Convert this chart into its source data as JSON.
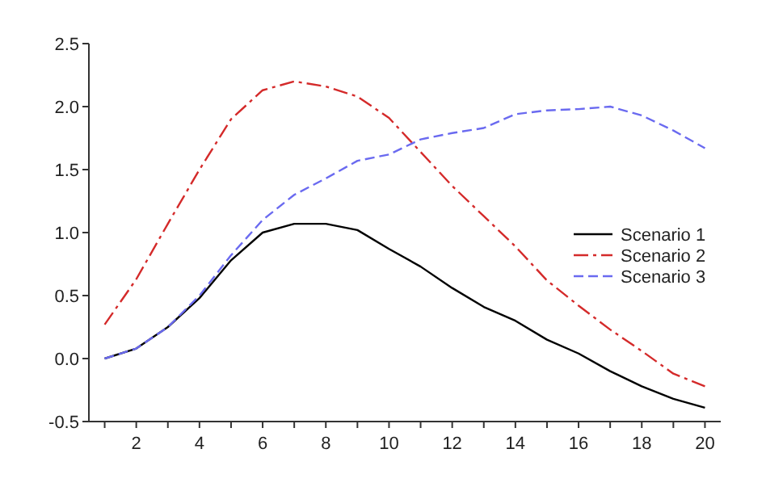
{
  "chart_data": {
    "type": "line",
    "x": [
      1,
      2,
      3,
      4,
      5,
      6,
      7,
      8,
      9,
      10,
      11,
      12,
      13,
      14,
      15,
      16,
      17,
      18,
      19,
      20
    ],
    "series": [
      {
        "name": "Scenario 1",
        "color": "#000000",
        "line_style": "solid",
        "values": [
          0,
          0.08,
          0.25,
          0.48,
          0.78,
          1.0,
          1.07,
          1.07,
          1.02,
          0.87,
          0.73,
          0.56,
          0.41,
          0.3,
          0.15,
          0.04,
          -0.1,
          -0.22,
          -0.32,
          -0.39
        ]
      },
      {
        "name": "Scenario 2",
        "color": "#d42a2a",
        "line_style": "dashdot",
        "values": [
          0.27,
          0.63,
          1.07,
          1.5,
          1.9,
          2.13,
          2.2,
          2.16,
          2.08,
          1.91,
          1.64,
          1.37,
          1.13,
          0.89,
          0.62,
          0.42,
          0.23,
          0.06,
          -0.12,
          -0.22
        ]
      },
      {
        "name": "Scenario 3",
        "color": "#6a6af0",
        "line_style": "dashed",
        "values": [
          0,
          0.08,
          0.25,
          0.5,
          0.82,
          1.1,
          1.3,
          1.43,
          1.57,
          1.62,
          1.74,
          1.79,
          1.83,
          1.94,
          1.97,
          1.98,
          2.0,
          1.93,
          1.81,
          1.67
        ]
      }
    ],
    "xlim": [
      0.5,
      20.5
    ],
    "xticks": [
      {
        "value": 1,
        "label": null
      },
      2,
      {
        "value": 3,
        "label": null
      },
      4,
      {
        "value": 5,
        "label": null
      },
      6,
      {
        "value": 7,
        "label": null
      },
      8,
      {
        "value": 9,
        "label": null
      },
      10,
      {
        "value": 11,
        "label": null
      },
      12,
      {
        "value": 13,
        "label": null
      },
      14,
      {
        "value": 15,
        "label": null
      },
      16,
      {
        "value": 17,
        "label": null
      },
      18,
      {
        "value": 19,
        "label": null
      },
      20
    ],
    "ylim": [
      -0.5,
      2.5
    ],
    "yticks": [
      {
        "value": -0.5,
        "label": "-0.5"
      },
      {
        "value": 0,
        "label": "0.0"
      },
      {
        "value": 0.5,
        "label": "0.5"
      },
      {
        "value": 1,
        "label": "1.0"
      },
      {
        "value": 1.5,
        "label": "1.5"
      },
      {
        "value": 2,
        "label": "2.0"
      },
      {
        "value": 2.5,
        "label": "2.5"
      }
    ],
    "legend": "right",
    "grid": false
  }
}
